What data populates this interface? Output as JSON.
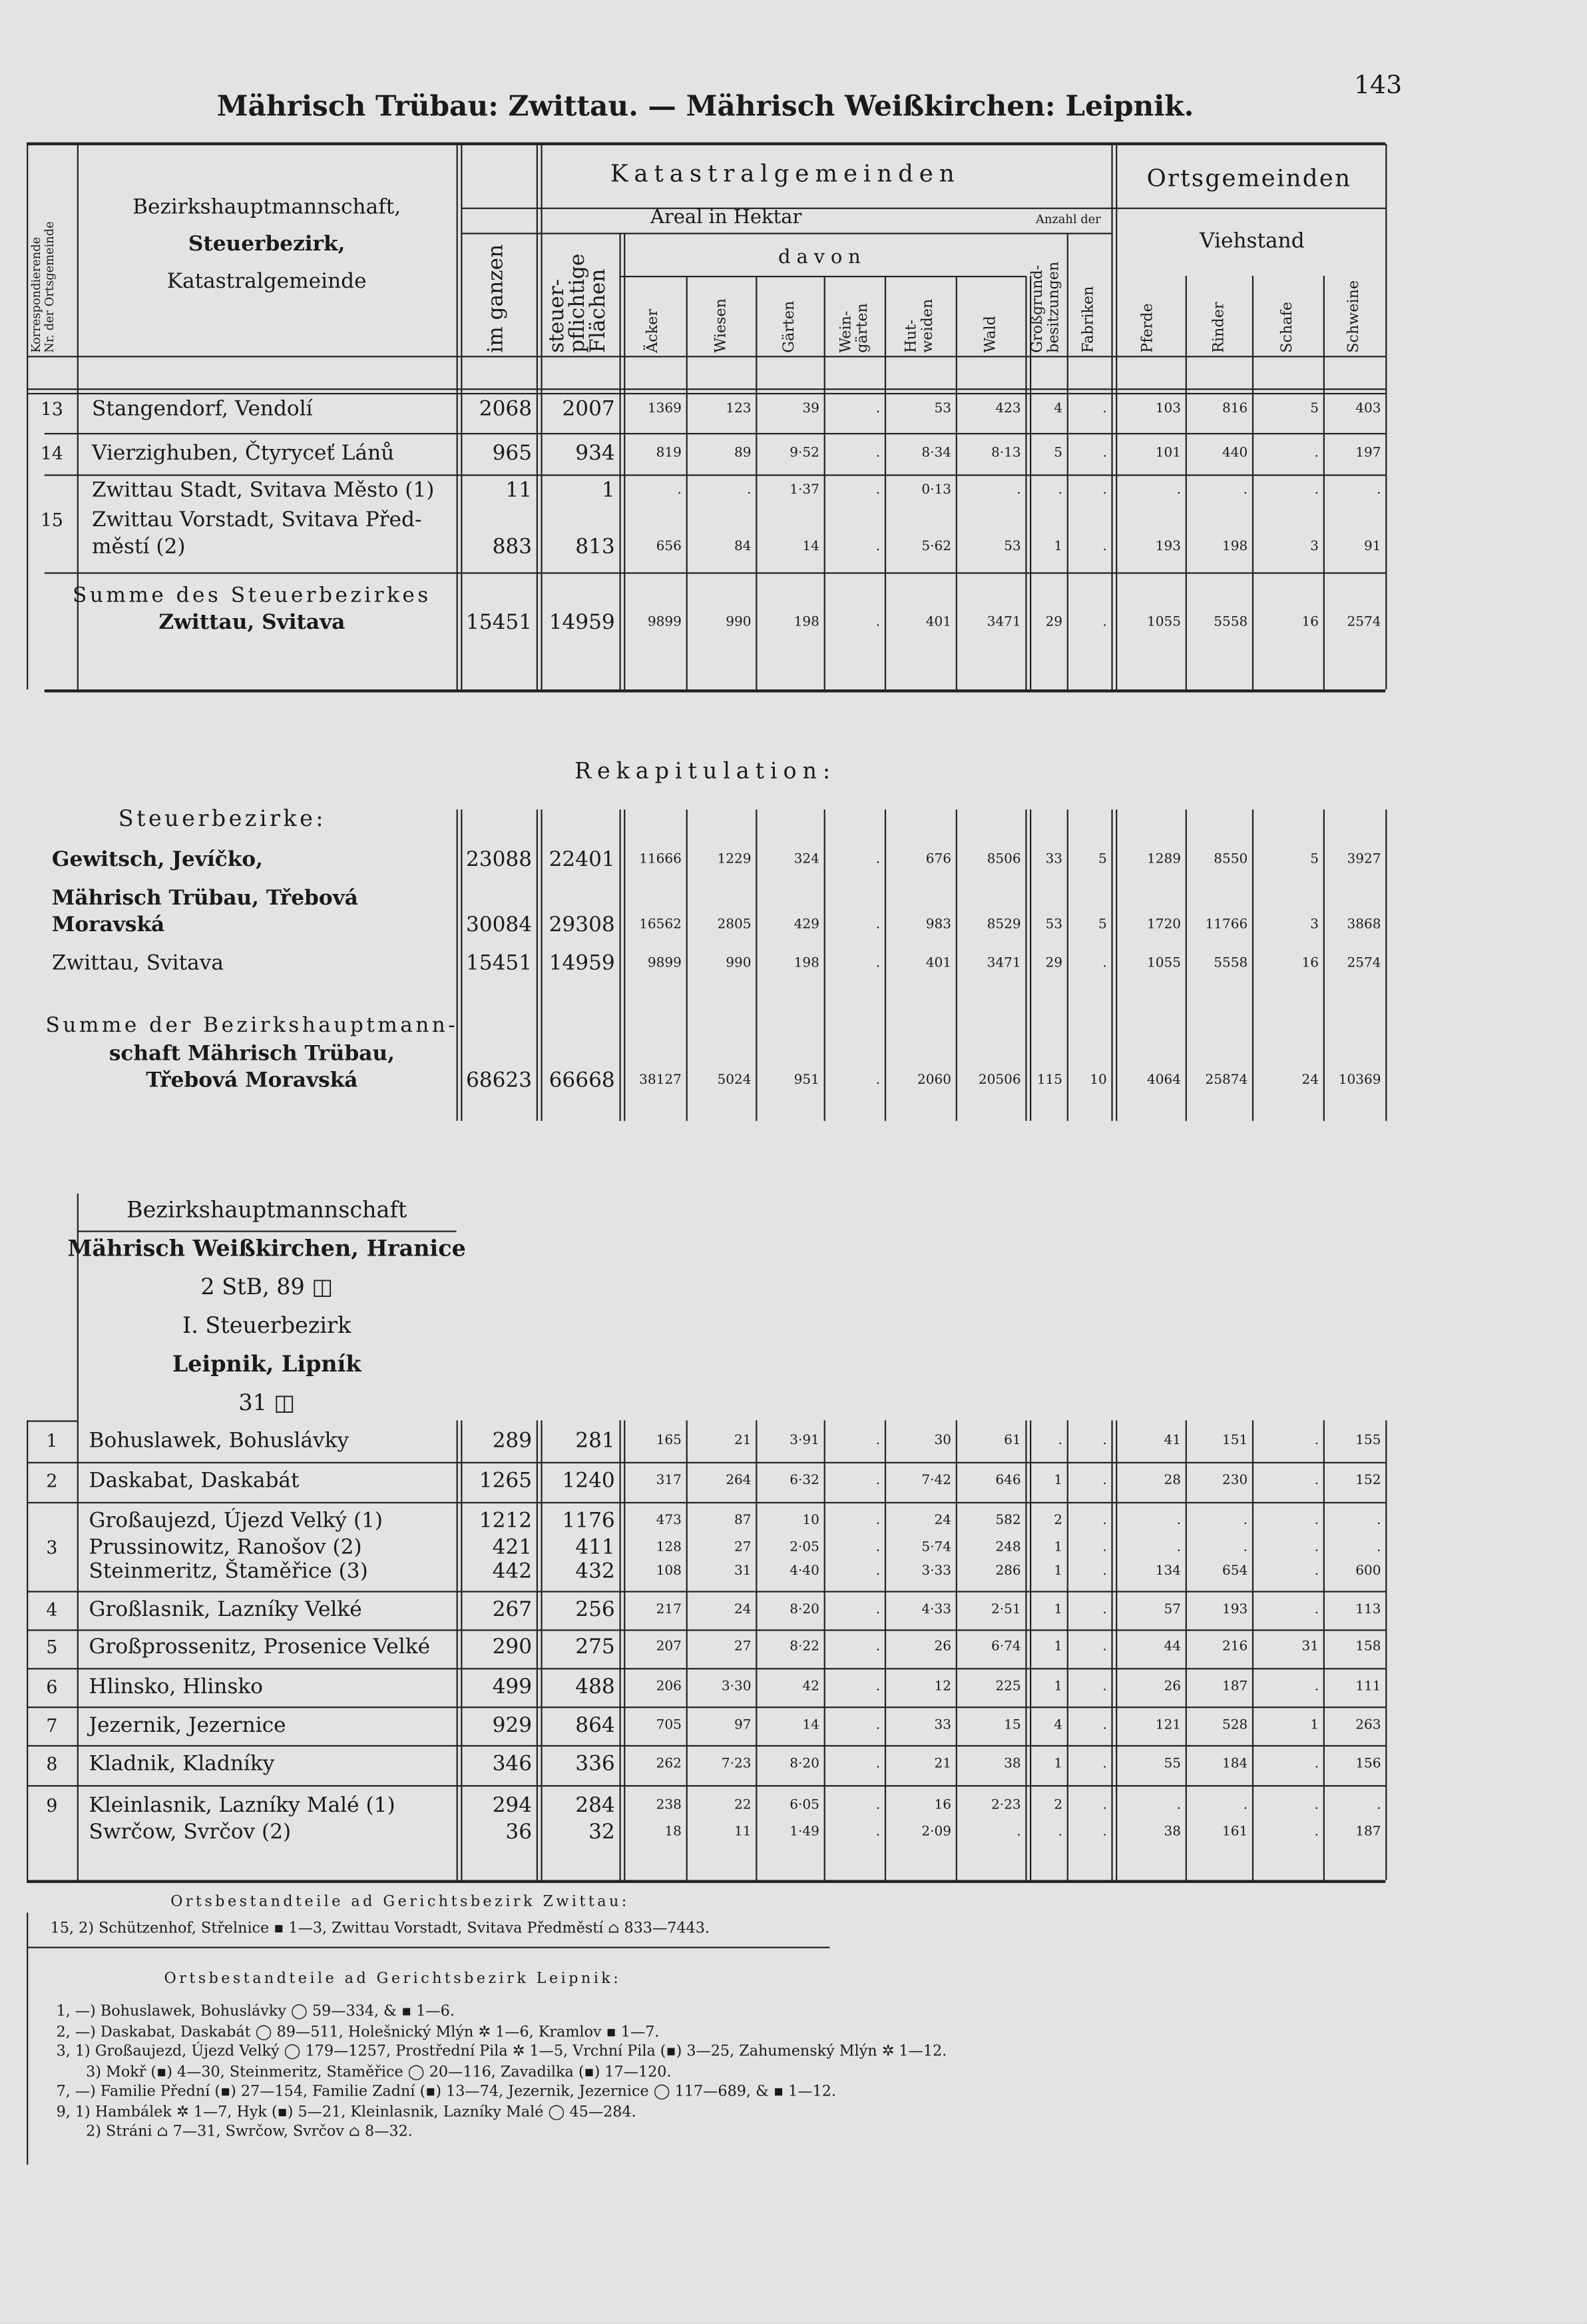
{
  "header": {
    "title": "Mährisch Trübau: Zwittau. — Mährisch Weißkirchen: Leipnik.",
    "page_number": "143"
  },
  "columns": {
    "nr": [
      "Korrespondierende",
      "Nr. der Ortsgemeinde"
    ],
    "name": [
      "Bezirkshauptmannschaft,",
      "Steuerbezirk,",
      "Katastralgemeinde"
    ],
    "group_kataster": "Katastralgemeinden",
    "group_areal": "Areal in Hektar",
    "group_davon": "davon",
    "group_anzahl": "Anzahl der",
    "group_orts": "Ortsgemeinden",
    "group_vieh": "Viehstand",
    "labels": [
      [
        "im ganzen"
      ],
      [
        "steuer-",
        "pflichtige",
        "Flächen"
      ],
      [
        "Äcker"
      ],
      [
        "Wiesen"
      ],
      [
        "Gärten"
      ],
      [
        "Wein-",
        "gärten"
      ],
      [
        "Hut-",
        "weiden"
      ],
      [
        "Wald"
      ],
      [
        "Großgrund-",
        "besitzungen"
      ],
      [
        "Fabriken"
      ],
      [
        "Pferde"
      ],
      [
        "Rinder"
      ],
      [
        "Schafe"
      ],
      [
        "Schweine"
      ]
    ]
  },
  "table1": {
    "rows": [
      {
        "nr": "13",
        "name": "Stangendorf, Vendolí",
        "cells": [
          "2068",
          "2007",
          "1369",
          "123",
          "39",
          ".",
          "53",
          "423",
          "4",
          ".",
          "103",
          "816",
          "5",
          "403"
        ]
      },
      {
        "nr": "14",
        "name": "Vierzighuben, Čtyryceť Lánů",
        "cells": [
          "965",
          "934",
          "819",
          "89",
          "9·52",
          ".",
          "8·34",
          "8·13",
          "5",
          ".",
          "101",
          "440",
          ".",
          "197"
        ]
      },
      {
        "name": "Zwittau Stadt, Svitava Město (1)",
        "cells": [
          "11",
          "1",
          ".",
          ".",
          "1·37",
          ".",
          "0·13",
          ".",
          ".",
          ".",
          ".",
          ".",
          ".",
          "."
        ]
      },
      {
        "nr": "15",
        "name": "Zwittau Vorstadt, Svitava Před-"
      },
      {
        "name": "městí (2)",
        "cells": [
          "883",
          "813",
          "656",
          "84",
          "14",
          ".",
          "5·62",
          "53",
          "1",
          ".",
          "193",
          "198",
          "3",
          "91"
        ]
      },
      {
        "name": "Summe des Steuerbezirkes"
      },
      {
        "name": "Zwittau, Svitava",
        "cells": [
          "15451",
          "14959",
          "9899",
          "990",
          "198",
          ".",
          "401",
          "3471",
          "29",
          ".",
          "1055",
          "5558",
          "16",
          "2574"
        ]
      }
    ]
  },
  "recap": {
    "title": "Rekapitulation:",
    "subtitle": "Steuerbezirke:",
    "rows": [
      {
        "name": "Gewitsch, Jevíčko,",
        "cells": [
          "23088",
          "22401",
          "11666",
          "1229",
          "324",
          ".",
          "676",
          "8506",
          "33",
          "5",
          "1289",
          "8550",
          "5",
          "3927"
        ]
      },
      {
        "name": "Mährisch Trübau, Třebová"
      },
      {
        "name": "Moravská",
        "cells": [
          "30084",
          "29308",
          "16562",
          "2805",
          "429",
          ".",
          "983",
          "8529",
          "53",
          "5",
          "1720",
          "11766",
          "3",
          "3868"
        ]
      },
      {
        "name": "Zwittau, Svitava",
        "cells": [
          "15451",
          "14959",
          "9899",
          "990",
          "198",
          ".",
          "401",
          "3471",
          "29",
          ".",
          "1055",
          "5558",
          "16",
          "2574"
        ]
      },
      {
        "name": "Summe der Bezirkshauptmann-"
      },
      {
        "name": "schaft Mährisch Trübau,"
      },
      {
        "name": "Třebová Moravská",
        "cells": [
          "68623",
          "66668",
          "38127",
          "5024",
          "951",
          ".",
          "2060",
          "20506",
          "115",
          "10",
          "4064",
          "25874",
          "24",
          "10369"
        ]
      }
    ]
  },
  "table2": {
    "headings": [
      "Bezirkshauptmannschaft",
      "Mährisch Weißkirchen, Hranice",
      "2 StB, 89 ◫",
      "I. Steuerbezirk",
      "Leipnik, Lipník",
      "31 ◫"
    ],
    "rows": [
      {
        "nr": "1",
        "name": "Bohuslawek, Bohuslávky",
        "cells": [
          "289",
          "281",
          "165",
          "21",
          "3·91",
          ".",
          "30",
          "61",
          ".",
          ".",
          "41",
          "151",
          ".",
          "155"
        ]
      },
      {
        "nr": "2",
        "name": "Daskabat, Daskabát",
        "cells": [
          "1265",
          "1240",
          "317",
          "264",
          "6·32",
          ".",
          "7·42",
          "646",
          "1",
          ".",
          "28",
          "230",
          ".",
          "152"
        ]
      },
      {
        "name": "Großaujezd, Újezd Velký (1)",
        "cells": [
          "1212",
          "1176",
          "473",
          "87",
          "10",
          ".",
          "24",
          "582",
          "2",
          ".",
          ".",
          ".",
          ".",
          "."
        ]
      },
      {
        "nr": "3",
        "name": "Prussinowitz, Ranošov (2)",
        "cells": [
          "421",
          "411",
          "128",
          "27",
          "2·05",
          ".",
          "5·74",
          "248",
          "1",
          ".",
          ".",
          ".",
          ".",
          "."
        ]
      },
      {
        "name": "Steinmeritz, Štaměřice (3)",
        "cells": [
          "442",
          "432",
          "108",
          "31",
          "4·40",
          ".",
          "3·33",
          "286",
          "1",
          ".",
          "134",
          "654",
          ".",
          "600"
        ]
      },
      {
        "nr": "4",
        "name": "Großlasnik, Lazníky Velké",
        "cells": [
          "267",
          "256",
          "217",
          "24",
          "8·20",
          ".",
          "4·33",
          "2·51",
          "1",
          ".",
          "57",
          "193",
          ".",
          "113"
        ]
      },
      {
        "nr": "5",
        "name": "Großprossenitz, Prosenice Velké",
        "cells": [
          "290",
          "275",
          "207",
          "27",
          "8·22",
          ".",
          "26",
          "6·74",
          "1",
          ".",
          "44",
          "216",
          "31",
          "158"
        ]
      },
      {
        "nr": "6",
        "name": "Hlinsko, Hlinsko",
        "cells": [
          "499",
          "488",
          "206",
          "3·30",
          "42",
          ".",
          "12",
          "225",
          "1",
          ".",
          "26",
          "187",
          ".",
          "111"
        ]
      },
      {
        "nr": "7",
        "name": "Jezernik, Jezernice",
        "cells": [
          "929",
          "864",
          "705",
          "97",
          "14",
          ".",
          "33",
          "15",
          "4",
          ".",
          "121",
          "528",
          "1",
          "263"
        ]
      },
      {
        "nr": "8",
        "name": "Kladnik, Kladníky",
        "cells": [
          "346",
          "336",
          "262",
          "7·23",
          "8·20",
          ".",
          "21",
          "38",
          "1",
          ".",
          "55",
          "184",
          ".",
          "156"
        ]
      },
      {
        "nr": "9",
        "name": "Kleinlasnik, Lazníky Malé (1)",
        "cells": [
          "294",
          "284",
          "238",
          "22",
          "6·05",
          ".",
          "16",
          "2·23",
          "2",
          ".",
          ".",
          ".",
          ".",
          "."
        ]
      },
      {
        "name": "Swrčow, Svrčov (2)",
        "cells": [
          "36",
          "32",
          "18",
          "11",
          "1·49",
          ".",
          "2·09",
          ".",
          ".",
          ".",
          "38",
          "161",
          ".",
          "187"
        ]
      }
    ]
  },
  "notes": {
    "zwittau_title": "Ortsbestandteile ad Gerichtsbezirk Zwittau:",
    "zwittau_lines": [
      "15, 2) Schützenhof, Střelnice ▪ 1—3, Zwittau Vorstadt, Svitava Předměstí ⌂ 833—7443."
    ],
    "leipnik_title": "Ortsbestandteile ad Gerichtsbezirk Leipnik:",
    "leipnik_lines": [
      "1, —) Bohuslawek, Bohuslávky ◯ 59—334, & ▪ 1—6.",
      "2, —) Daskabat, Daskabát ◯ 89—511, Holešnický Mlýn ✲ 1—6, Kramlov ▪ 1—7.",
      "3, 1) Großaujezd, Újezd Velký ◯ 179—1257, Prostřední Pila ✲ 1—5, Vrchní Pila (▪) 3—25, Zahumenský Mlýn ✲ 1—12.",
      "3) Mokř (▪) 4—30, Steinmeritz, Staměřice ◯ 20—116, Zavadilka (▪) 17—120.",
      "7, —) Familie Přední (▪) 27—154, Familie Zadní (▪) 13—74, Jezernik, Jezernice ◯ 117—689, & ▪ 1—12.",
      "9, 1) Hambálek ✲ 1—7, Hyk (▪) 5—21, Kleinlasnik, Lazníky Malé ◯ 45—284.",
      "2) Stráni ⌂ 7—31, Swrčow, Svrčov ⌂ 8—32."
    ]
  }
}
